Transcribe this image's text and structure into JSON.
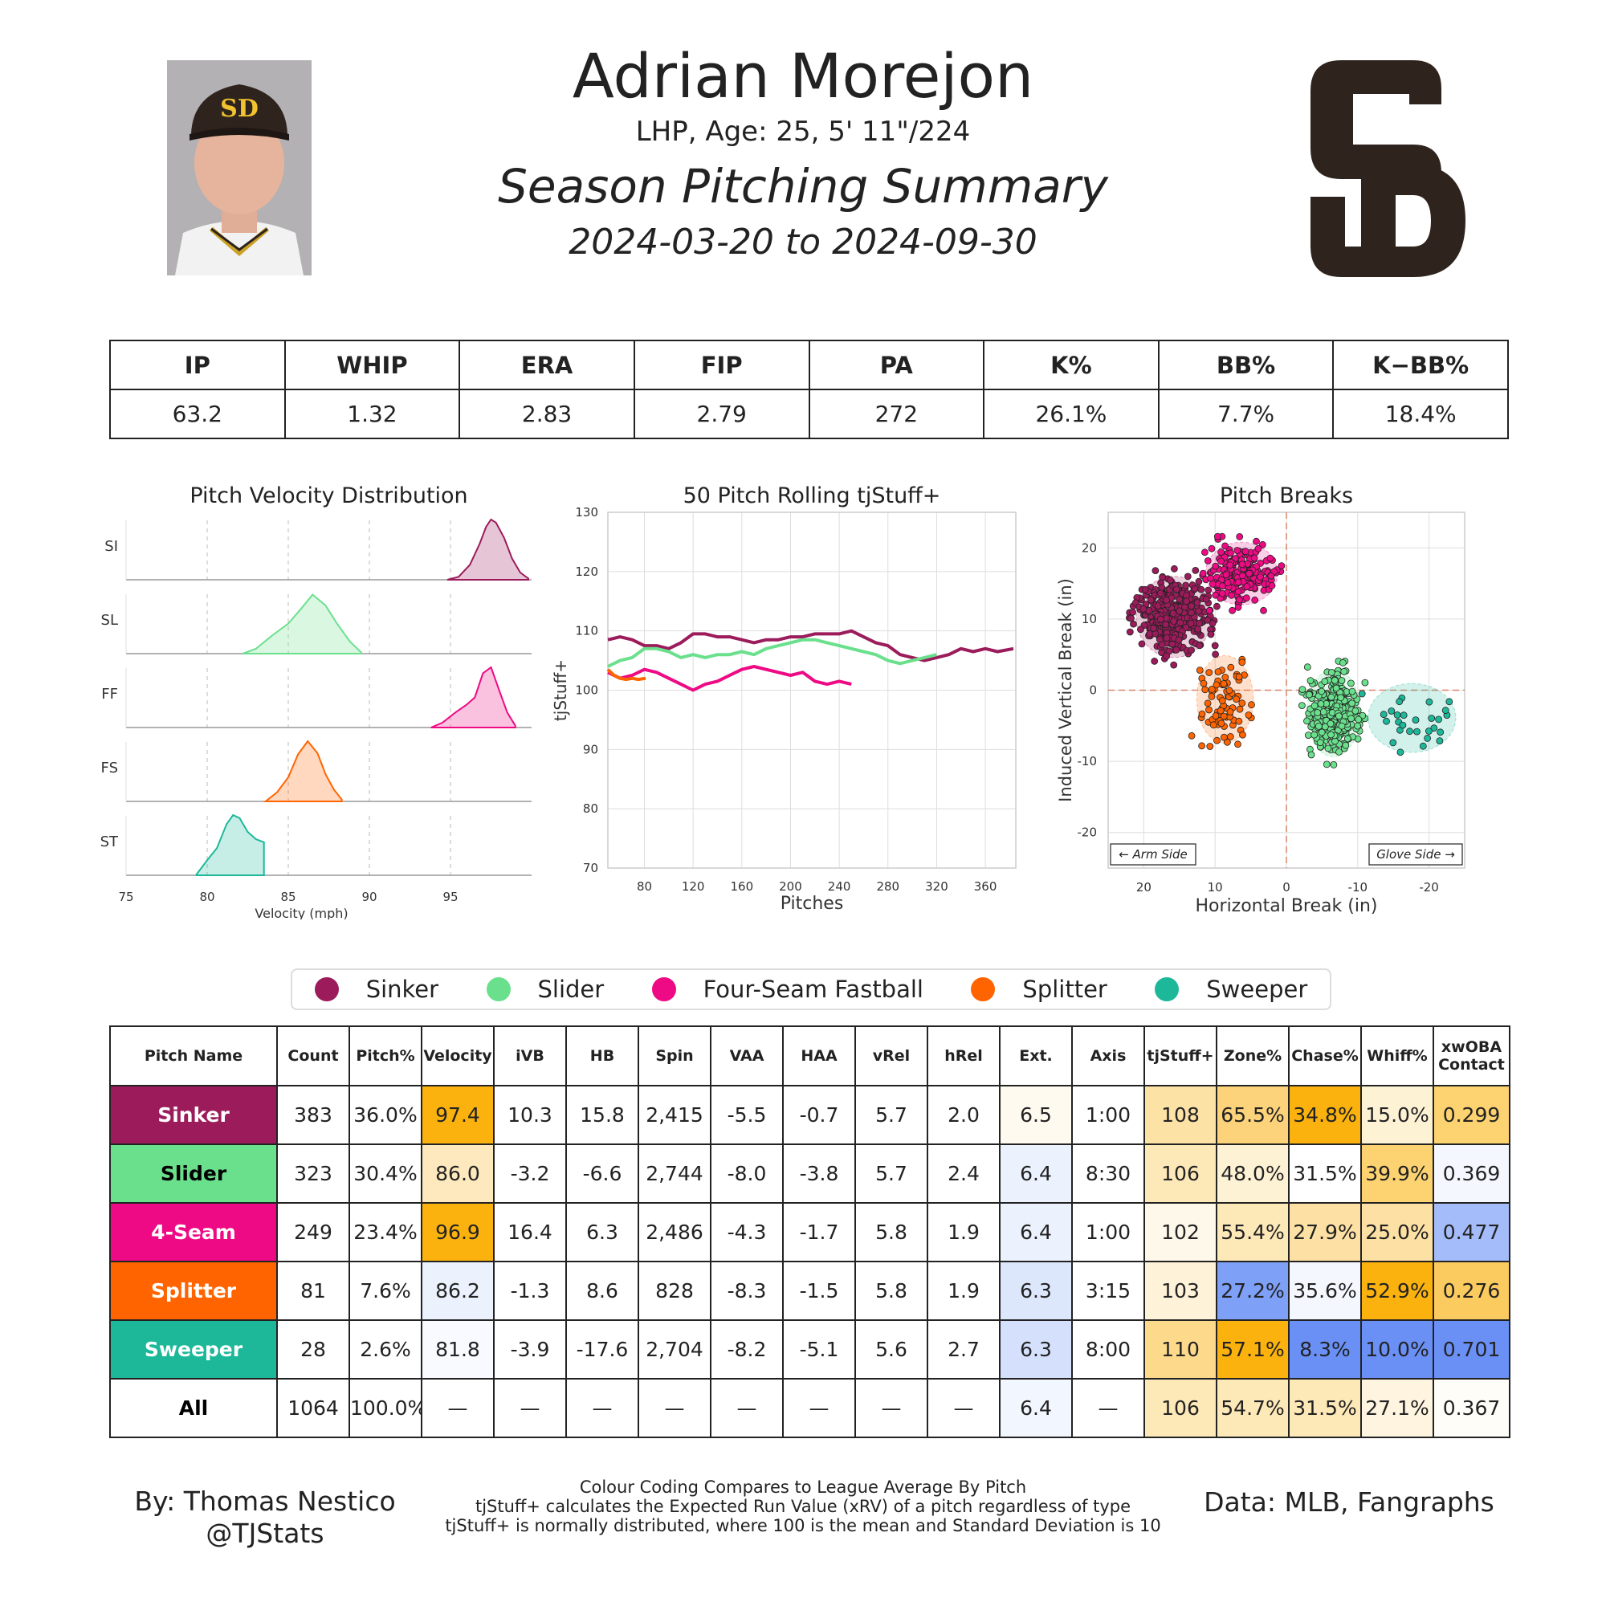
{
  "header": {
    "player_name": "Adrian Morejon",
    "bio": "LHP, Age: 25, 5' 11\"/224",
    "title": "Season Pitching Summary",
    "date_range": "2024-03-20 to 2024-09-30"
  },
  "season_stats": {
    "headers": [
      "IP",
      "WHIP",
      "ERA",
      "FIP",
      "PA",
      "K%",
      "BB%",
      "K−BB%"
    ],
    "values": [
      "63.2",
      "1.32",
      "2.83",
      "2.79",
      "272",
      "26.1%",
      "7.7%",
      "18.4%"
    ]
  },
  "colors": {
    "sinker": "#9b1b5b",
    "slider": "#6ae08d",
    "four_seam": "#ee0a85",
    "splitter": "#ff6400",
    "sweeper": "#1db89a"
  },
  "chart_data": [
    {
      "type": "area",
      "title": "Pitch Velocity Distribution",
      "xlabel": "Velocity (mph)",
      "xlim": [
        75,
        100
      ],
      "xticks": [
        75,
        80,
        85,
        90,
        95
      ],
      "series": [
        {
          "name": "SI",
          "color": "#9b1b5b",
          "x": [
            94.8,
            95.5,
            96.2,
            96.8,
            97.2,
            97.5,
            97.8,
            98.3,
            98.8,
            99.3,
            99.8
          ],
          "y": [
            0.0,
            0.05,
            0.25,
            0.6,
            0.88,
            1.0,
            0.95,
            0.7,
            0.35,
            0.12,
            0.02
          ]
        },
        {
          "name": "SL",
          "color": "#6ae08d",
          "x": [
            82.2,
            83.0,
            84.0,
            85.0,
            85.8,
            86.5,
            87.3,
            88.0,
            88.8,
            89.5
          ],
          "y": [
            0.0,
            0.08,
            0.3,
            0.5,
            0.75,
            0.98,
            0.8,
            0.5,
            0.2,
            0.02
          ]
        },
        {
          "name": "FF",
          "color": "#ee0a85",
          "x": [
            93.8,
            94.5,
            95.3,
            96.0,
            96.5,
            97.0,
            97.5,
            98.0,
            98.5,
            99.0
          ],
          "y": [
            0.0,
            0.08,
            0.25,
            0.38,
            0.5,
            0.9,
            1.0,
            0.62,
            0.25,
            0.03
          ]
        },
        {
          "name": "FS",
          "color": "#ff6400",
          "x": [
            83.6,
            84.3,
            85.0,
            85.6,
            86.2,
            86.8,
            87.3,
            87.8,
            88.3
          ],
          "y": [
            0.0,
            0.15,
            0.4,
            0.78,
            1.0,
            0.8,
            0.45,
            0.2,
            0.03
          ]
        },
        {
          "name": "ST",
          "color": "#1db89a",
          "x": [
            79.3,
            80.0,
            80.6,
            81.2,
            81.6,
            82.0,
            82.5,
            83.0,
            83.5
          ],
          "y": [
            0.0,
            0.25,
            0.45,
            0.85,
            1.0,
            0.95,
            0.72,
            0.6,
            0.55
          ]
        }
      ]
    },
    {
      "type": "line",
      "title": "50 Pitch Rolling tjStuff+",
      "xlabel": "Pitches",
      "ylabel": "tjStuff+",
      "xlim": [
        50,
        385
      ],
      "ylim": [
        70,
        130
      ],
      "xticks": [
        80,
        120,
        160,
        200,
        240,
        280,
        320,
        360
      ],
      "yticks": [
        70,
        80,
        90,
        100,
        110,
        120,
        130
      ],
      "series": [
        {
          "name": "Sinker",
          "color": "#9b1b5b",
          "x": [
            50,
            60,
            70,
            80,
            90,
            100,
            110,
            120,
            130,
            140,
            150,
            160,
            170,
            180,
            190,
            200,
            210,
            220,
            230,
            240,
            250,
            260,
            270,
            280,
            290,
            300,
            310,
            320,
            330,
            340,
            350,
            360,
            370,
            383
          ],
          "y": [
            108.5,
            109,
            108.5,
            107.5,
            107.5,
            107,
            108,
            109.5,
            109.5,
            109,
            109,
            108.5,
            108,
            108.5,
            108.5,
            109,
            109,
            109.5,
            109.5,
            109.5,
            110,
            109,
            108,
            107.5,
            106,
            105.5,
            105,
            105.5,
            106,
            107,
            106.5,
            107,
            106.5,
            107
          ]
        },
        {
          "name": "Slider",
          "color": "#6ae08d",
          "x": [
            50,
            60,
            70,
            80,
            90,
            100,
            110,
            120,
            130,
            140,
            150,
            160,
            170,
            180,
            190,
            200,
            210,
            220,
            230,
            240,
            250,
            260,
            270,
            280,
            290,
            300,
            310,
            320
          ],
          "y": [
            104,
            105,
            105.5,
            107,
            107,
            106.5,
            105.5,
            106,
            105.5,
            106,
            106,
            106.5,
            106,
            107,
            107.5,
            108,
            108.5,
            108.5,
            108,
            107.5,
            107,
            106.5,
            106,
            105,
            104.5,
            105,
            105.5,
            106
          ]
        },
        {
          "name": "Four-Seam Fastball",
          "color": "#ee0a85",
          "x": [
            50,
            60,
            70,
            80,
            90,
            100,
            110,
            120,
            130,
            140,
            150,
            160,
            170,
            180,
            190,
            200,
            210,
            220,
            230,
            240,
            250
          ],
          "y": [
            103,
            102,
            102.5,
            103.5,
            103,
            102,
            101,
            100,
            101,
            101.5,
            102.5,
            103.5,
            104,
            103.5,
            103,
            102.5,
            103,
            101.5,
            101,
            101.5,
            101
          ]
        },
        {
          "name": "Splitter",
          "color": "#ff6400",
          "x": [
            50,
            55,
            60,
            65,
            70,
            75,
            81
          ],
          "y": [
            103.5,
            102.5,
            102,
            101.8,
            102,
            101.8,
            102
          ]
        }
      ]
    },
    {
      "type": "scatter",
      "title": "Pitch Breaks",
      "xlabel": "Horizontal Break (in)",
      "ylabel": "Induced Vertical Break (in)",
      "xlim": [
        25,
        -25
      ],
      "ylim": [
        -25,
        25
      ],
      "xticks": [
        20,
        10,
        0,
        -10,
        -20
      ],
      "yticks": [
        -20,
        -10,
        0,
        10,
        20
      ],
      "annotations": [
        "← Arm Side",
        "Glove Side →"
      ],
      "series": [
        {
          "name": "Sinker",
          "color": "#9b1b5b",
          "count": 383,
          "center": [
            15.8,
            10.3
          ],
          "spread": [
            2.4,
            2.6
          ]
        },
        {
          "name": "Slider",
          "color": "#6ae08d",
          "count": 323,
          "center": [
            -6.6,
            -3.2
          ],
          "spread": [
            1.7,
            2.8
          ]
        },
        {
          "name": "Four-Seam Fastball",
          "color": "#ee0a85",
          "count": 249,
          "center": [
            6.3,
            16.4
          ],
          "spread": [
            2.3,
            2.0
          ]
        },
        {
          "name": "Splitter",
          "color": "#ff6400",
          "count": 81,
          "center": [
            8.6,
            -1.3
          ],
          "spread": [
            1.8,
            2.8
          ]
        },
        {
          "name": "Sweeper",
          "color": "#1db89a",
          "count": 28,
          "center": [
            -17.6,
            -3.9
          ],
          "spread": [
            2.8,
            2.2
          ]
        }
      ]
    }
  ],
  "legend": [
    {
      "name": "Sinker",
      "color": "#9b1b5b"
    },
    {
      "name": "Slider",
      "color": "#6ae08d"
    },
    {
      "name": "Four-Seam Fastball",
      "color": "#ee0a85"
    },
    {
      "name": "Splitter",
      "color": "#ff6400"
    },
    {
      "name": "Sweeper",
      "color": "#1db89a"
    }
  ],
  "pitch_table": {
    "headers": [
      "Pitch Name",
      "Count",
      "Pitch%",
      "Velocity",
      "iVB",
      "HB",
      "Spin",
      "VAA",
      "HAA",
      "vRel",
      "hRel",
      "Ext.",
      "Axis",
      "tjStuff+",
      "Zone%",
      "Chase%",
      "Whiff%",
      "xwOBA Contact"
    ],
    "rows": [
      {
        "name": "Sinker",
        "name_bg": "#9b1b5b",
        "name_color": "#ffffff",
        "cells": [
          "383",
          "36.0%",
          "97.4",
          "10.3",
          "15.8",
          "2,415",
          "-5.5",
          "-0.7",
          "5.7",
          "2.0",
          "6.5",
          "1:00",
          "108",
          "65.5%",
          "34.8%",
          "15.0%",
          "0.299"
        ],
        "bgs": [
          "",
          "",
          "#fbb20e",
          "",
          "",
          "",
          "",
          "",
          "",
          "",
          "#fffaf0",
          "",
          "#fde2a6",
          "#fcd27a",
          "#fbb20e",
          "#fef2d5",
          "#fcd370"
        ]
      },
      {
        "name": "Slider",
        "name_bg": "#6ae08d",
        "name_color": "#000000",
        "cells": [
          "323",
          "30.4%",
          "86.0",
          "-3.2",
          "-6.6",
          "2,744",
          "-8.0",
          "-3.8",
          "5.7",
          "2.4",
          "6.4",
          "8:30",
          "106",
          "48.0%",
          "31.5%",
          "39.9%",
          "0.369"
        ],
        "bgs": [
          "",
          "",
          "#fde9bd",
          "",
          "",
          "",
          "",
          "",
          "",
          "",
          "#ecf2fd",
          "",
          "#fde8b8",
          "#fef2d5",
          "",
          "#fcd370",
          "#f4f7fe"
        ]
      },
      {
        "name": "4-Seam",
        "name_bg": "#ee0a85",
        "name_color": "#ffffff",
        "cells": [
          "249",
          "23.4%",
          "96.9",
          "16.4",
          "6.3",
          "2,486",
          "-4.3",
          "-1.7",
          "5.8",
          "1.9",
          "6.4",
          "1:00",
          "102",
          "55.4%",
          "27.9%",
          "25.0%",
          "0.477"
        ],
        "bgs": [
          "",
          "",
          "#fbb20e",
          "",
          "",
          "",
          "",
          "",
          "",
          "",
          "#ecf2fd",
          "",
          "#fef8ea",
          "#fde8b8",
          "#fde0a3",
          "#fde0a3",
          "#a4bcfa"
        ]
      },
      {
        "name": "Splitter",
        "name_bg": "#ff6400",
        "name_color": "#ffffff",
        "cells": [
          "81",
          "7.6%",
          "86.2",
          "-1.3",
          "8.6",
          "828",
          "-8.3",
          "-1.5",
          "5.8",
          "1.9",
          "6.3",
          "3:15",
          "103",
          "27.2%",
          "35.6%",
          "52.9%",
          "0.276"
        ],
        "bgs": [
          "",
          "",
          "#ecf2fd",
          "",
          "",
          "",
          "",
          "",
          "",
          "",
          "#dde7fc",
          "",
          "#fef2d8",
          "#7ea0f7",
          "#f4f7fe",
          "#fbb20e",
          "#fccb60"
        ]
      },
      {
        "name": "Sweeper",
        "name_bg": "#1db89a",
        "name_color": "#ffffff",
        "cells": [
          "28",
          "2.6%",
          "81.8",
          "-3.9",
          "-17.6",
          "2,704",
          "-8.2",
          "-5.1",
          "5.6",
          "2.7",
          "6.3",
          "8:00",
          "110",
          "57.1%",
          "8.3%",
          "10.0%",
          "0.701"
        ],
        "bgs": [
          "",
          "",
          "#f8faff",
          "",
          "",
          "",
          "",
          "",
          "",
          "",
          "#d5e1fc",
          "",
          "#fdd98c",
          "#fbb20e",
          "#6a90f6",
          "#6a90f6",
          "#6a90f6"
        ]
      },
      {
        "name": "All",
        "name_bg": "#ffffff",
        "name_color": "#000000",
        "cells": [
          "1064",
          "100.0%",
          "—",
          "—",
          "—",
          "—",
          "—",
          "—",
          "—",
          "—",
          "6.4",
          "—",
          "106",
          "54.7%",
          "31.5%",
          "27.1%",
          "0.367"
        ],
        "bgs": [
          "",
          "",
          "",
          "",
          "",
          "",
          "",
          "",
          "",
          "",
          "#f2f6fe",
          "",
          "#fde8b8",
          "#fde8b8",
          "#fde8b8",
          "#fef4e0",
          "#fffdf8"
        ]
      }
    ]
  },
  "footer": {
    "author": "By: Thomas Nestico",
    "handle": "@TJStats",
    "note1": "Colour Coding Compares to League Average By Pitch",
    "note2": "tjStuff+ calculates the Expected Run Value (xRV) of a pitch regardless of type",
    "note3": "tjStuff+ is normally distributed, where 100 is the mean and Standard Deviation is 10",
    "data_source": "Data: MLB, Fangraphs"
  }
}
